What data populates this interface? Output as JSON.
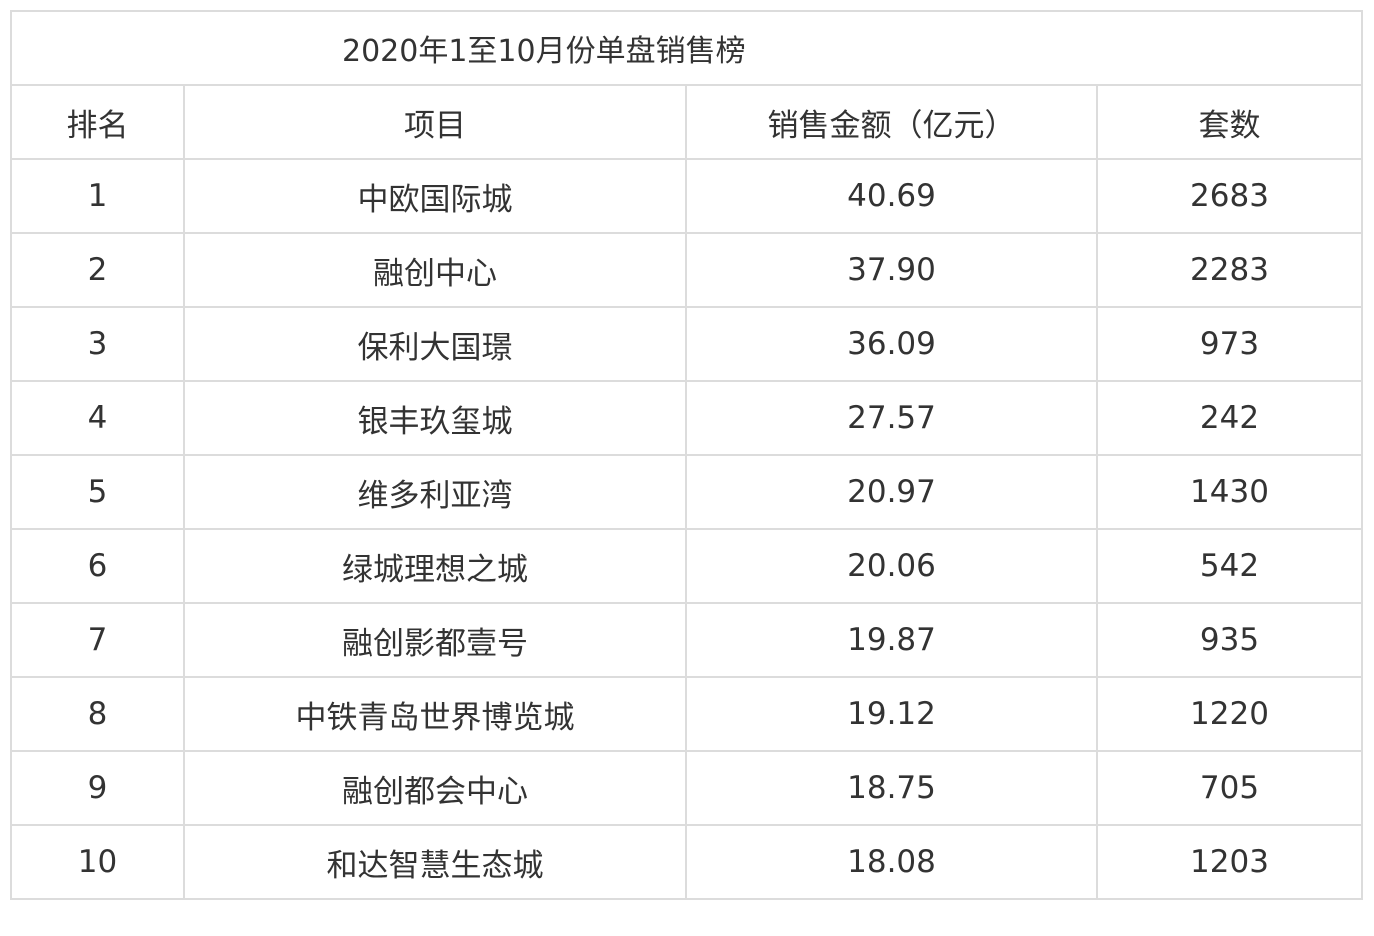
{
  "title": "2020年1至10月份单盘销售榜",
  "headers": [
    "排名",
    "项目",
    "销售金额（亿元）",
    "套数"
  ],
  "rows": [
    [
      "1",
      "中欧国际城",
      "40.69",
      "2683"
    ],
    [
      "2",
      "融创中心",
      "37.90",
      "2283"
    ],
    [
      "3",
      "保利大国璟",
      "36.09",
      "973"
    ],
    [
      "4",
      "银丰玖玺城",
      "27.57",
      "242"
    ],
    [
      "5",
      "维多利亚湾",
      "20.97",
      "1430"
    ],
    [
      "6",
      "绿城理想之城",
      "20.06",
      "542"
    ],
    [
      "7",
      "融创影都壹号",
      "19.87",
      "935"
    ],
    [
      "8",
      "中铁青岛世界博览城",
      "19.12",
      "1220"
    ],
    [
      "9",
      "融创都会中心",
      "18.75",
      "705"
    ],
    [
      "10",
      "和达智慧生态城",
      "18.08",
      "1203"
    ]
  ]
}
